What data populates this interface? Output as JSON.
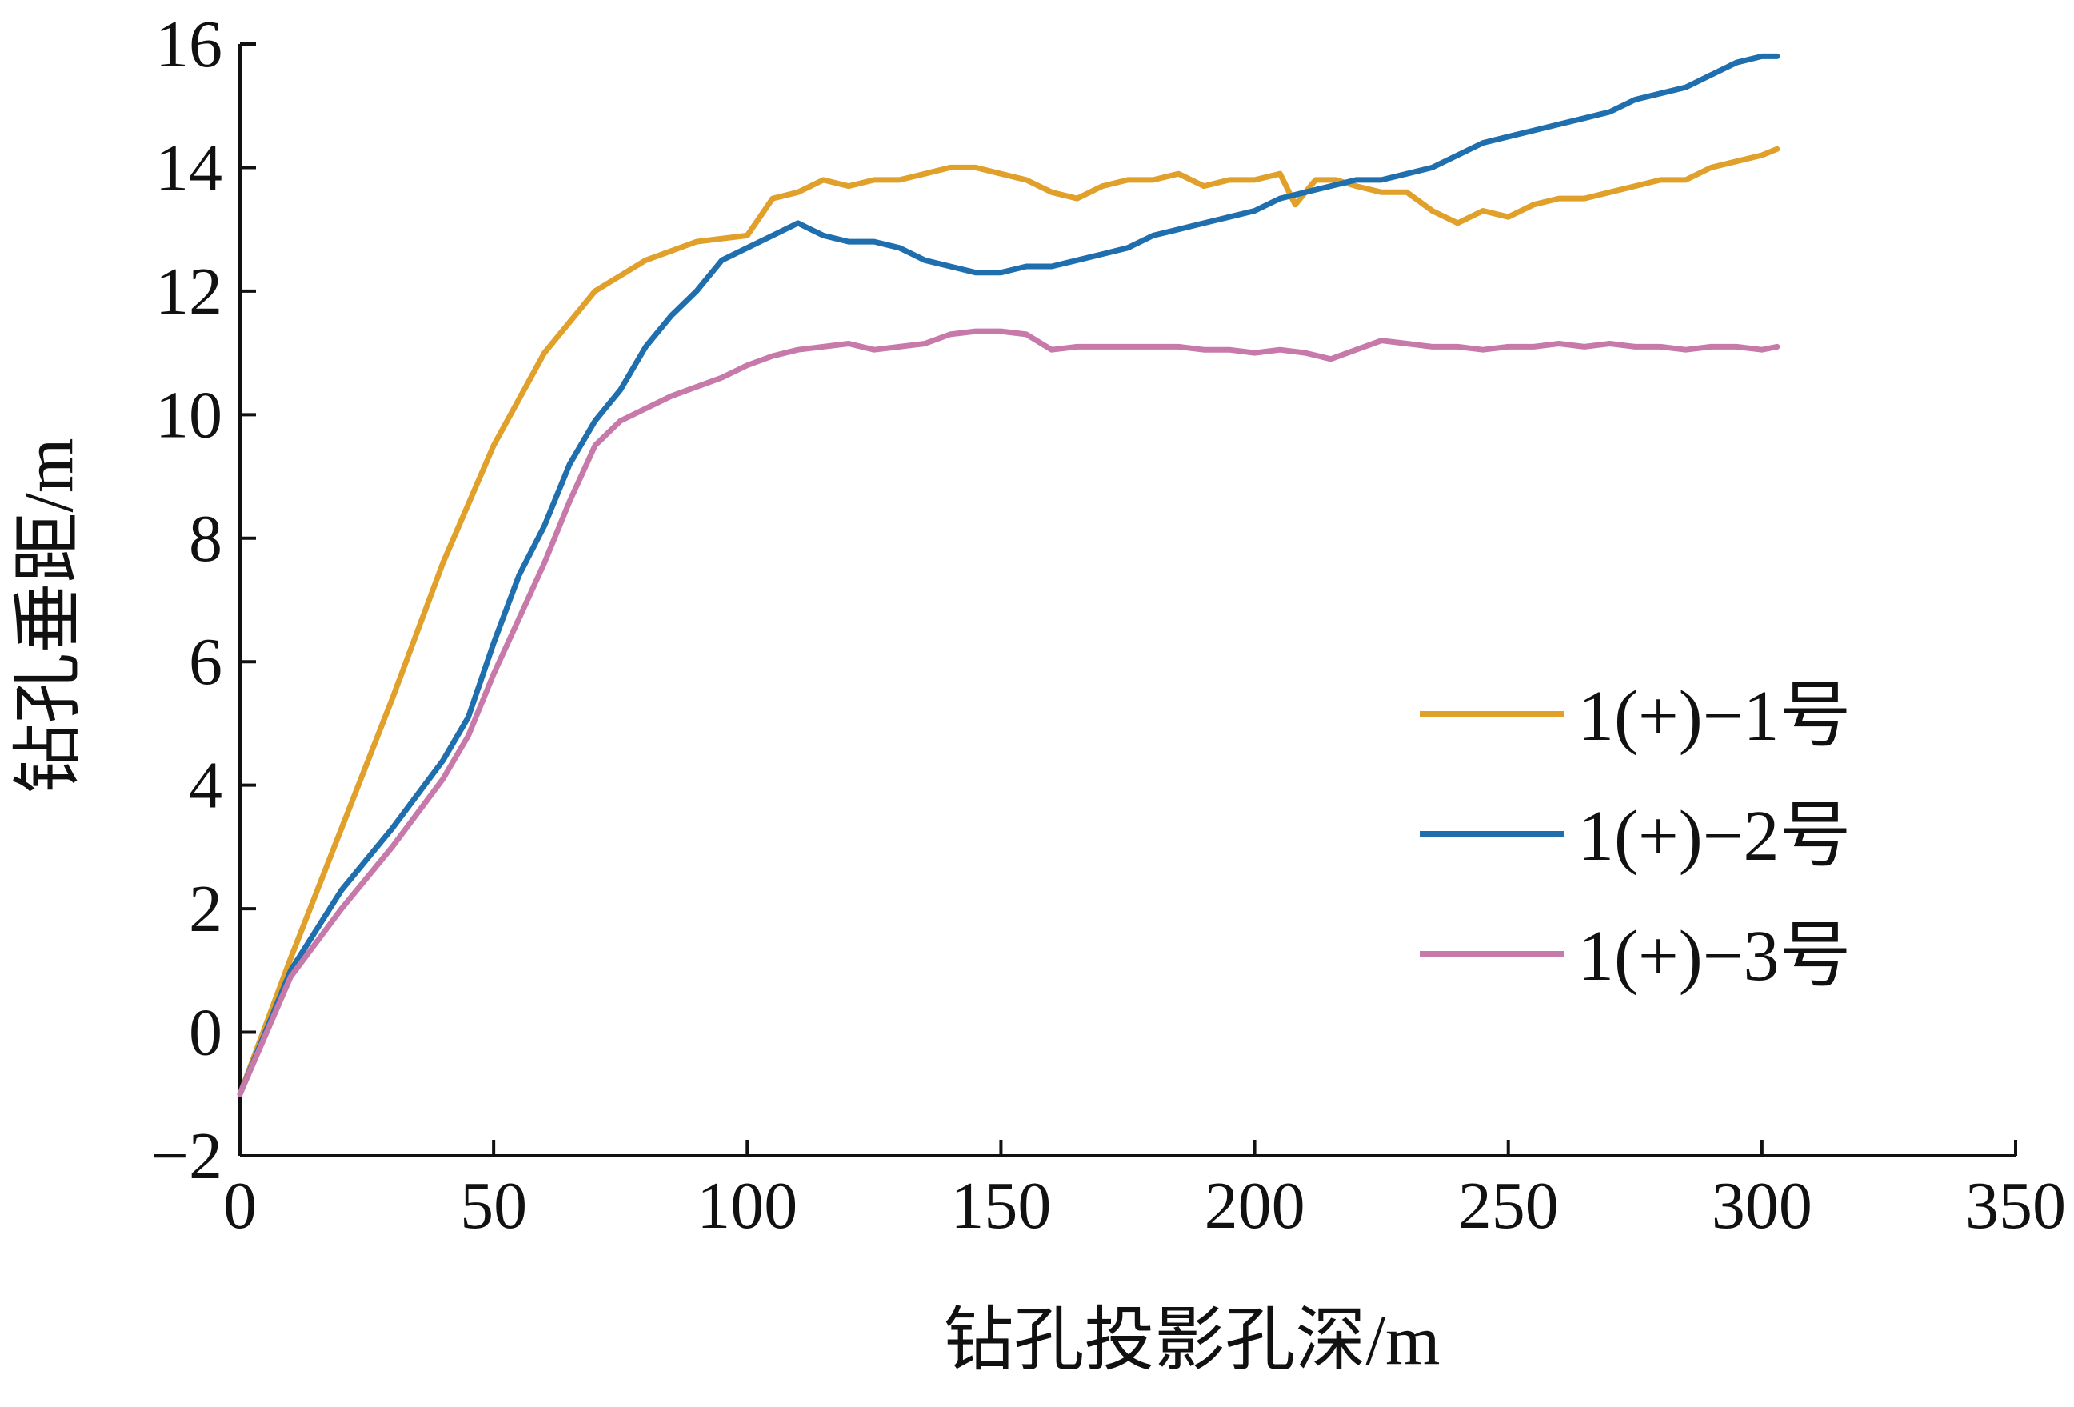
{
  "chart_data": {
    "type": "line",
    "xlabel": "钻孔投影孔深/m",
    "ylabel": "钻孔垂距/m",
    "xlim": [
      0,
      350
    ],
    "ylim": [
      -2,
      16
    ],
    "xticks": [
      0,
      50,
      100,
      150,
      200,
      250,
      300,
      350
    ],
    "yticks": [
      -2,
      0,
      2,
      4,
      6,
      8,
      10,
      12,
      14,
      16
    ],
    "xtick_labels": [
      "0",
      "50",
      "100",
      "150",
      "200",
      "250",
      "300",
      "350"
    ],
    "ytick_labels": [
      "−2",
      "0",
      "2",
      "4",
      "6",
      "8",
      "10",
      "12",
      "14",
      "16"
    ],
    "grid": false,
    "legend_position": "right-middle",
    "series": [
      {
        "name": "1(+)−1号",
        "color": "#E0A02A",
        "points": [
          [
            0,
            -1
          ],
          [
            10,
            1.2
          ],
          [
            20,
            3.3
          ],
          [
            30,
            5.4
          ],
          [
            40,
            7.6
          ],
          [
            50,
            9.5
          ],
          [
            60,
            11.0
          ],
          [
            70,
            12.0
          ],
          [
            80,
            12.5
          ],
          [
            90,
            12.8
          ],
          [
            100,
            12.9
          ],
          [
            105,
            13.5
          ],
          [
            110,
            13.6
          ],
          [
            115,
            13.8
          ],
          [
            120,
            13.7
          ],
          [
            125,
            13.8
          ],
          [
            130,
            13.8
          ],
          [
            135,
            13.9
          ],
          [
            140,
            14.0
          ],
          [
            145,
            14.0
          ],
          [
            150,
            13.9
          ],
          [
            155,
            13.8
          ],
          [
            160,
            13.6
          ],
          [
            165,
            13.5
          ],
          [
            170,
            13.7
          ],
          [
            175,
            13.8
          ],
          [
            180,
            13.8
          ],
          [
            185,
            13.9
          ],
          [
            190,
            13.7
          ],
          [
            195,
            13.8
          ],
          [
            200,
            13.8
          ],
          [
            205,
            13.9
          ],
          [
            208,
            13.4
          ],
          [
            212,
            13.8
          ],
          [
            216,
            13.8
          ],
          [
            220,
            13.7
          ],
          [
            225,
            13.6
          ],
          [
            230,
            13.6
          ],
          [
            235,
            13.3
          ],
          [
            240,
            13.1
          ],
          [
            245,
            13.3
          ],
          [
            250,
            13.2
          ],
          [
            255,
            13.4
          ],
          [
            260,
            13.5
          ],
          [
            265,
            13.5
          ],
          [
            270,
            13.6
          ],
          [
            275,
            13.7
          ],
          [
            280,
            13.8
          ],
          [
            285,
            13.8
          ],
          [
            290,
            14.0
          ],
          [
            295,
            14.1
          ],
          [
            300,
            14.2
          ],
          [
            303,
            14.3
          ]
        ]
      },
      {
        "name": "1(+)−2号",
        "color": "#1F6FAF",
        "points": [
          [
            0,
            -1
          ],
          [
            10,
            1.0
          ],
          [
            20,
            2.3
          ],
          [
            30,
            3.3
          ],
          [
            40,
            4.4
          ],
          [
            45,
            5.1
          ],
          [
            50,
            6.3
          ],
          [
            55,
            7.4
          ],
          [
            60,
            8.2
          ],
          [
            65,
            9.2
          ],
          [
            70,
            9.9
          ],
          [
            75,
            10.4
          ],
          [
            80,
            11.1
          ],
          [
            85,
            11.6
          ],
          [
            90,
            12.0
          ],
          [
            95,
            12.5
          ],
          [
            100,
            12.7
          ],
          [
            105,
            12.9
          ],
          [
            110,
            13.1
          ],
          [
            115,
            12.9
          ],
          [
            120,
            12.8
          ],
          [
            125,
            12.8
          ],
          [
            130,
            12.7
          ],
          [
            135,
            12.5
          ],
          [
            140,
            12.4
          ],
          [
            145,
            12.3
          ],
          [
            150,
            12.3
          ],
          [
            155,
            12.4
          ],
          [
            160,
            12.4
          ],
          [
            165,
            12.5
          ],
          [
            170,
            12.6
          ],
          [
            175,
            12.7
          ],
          [
            180,
            12.9
          ],
          [
            185,
            13.0
          ],
          [
            190,
            13.1
          ],
          [
            195,
            13.2
          ],
          [
            200,
            13.3
          ],
          [
            205,
            13.5
          ],
          [
            210,
            13.6
          ],
          [
            215,
            13.7
          ],
          [
            220,
            13.8
          ],
          [
            225,
            13.8
          ],
          [
            230,
            13.9
          ],
          [
            235,
            14.0
          ],
          [
            240,
            14.2
          ],
          [
            245,
            14.4
          ],
          [
            250,
            14.5
          ],
          [
            255,
            14.6
          ],
          [
            260,
            14.7
          ],
          [
            265,
            14.8
          ],
          [
            270,
            14.9
          ],
          [
            275,
            15.1
          ],
          [
            280,
            15.2
          ],
          [
            285,
            15.3
          ],
          [
            290,
            15.5
          ],
          [
            295,
            15.7
          ],
          [
            300,
            15.8
          ],
          [
            303,
            15.8
          ]
        ]
      },
      {
        "name": "1(+)−3号",
        "color": "#C77AAA",
        "points": [
          [
            0,
            -1
          ],
          [
            10,
            0.9
          ],
          [
            20,
            2.0
          ],
          [
            30,
            3.0
          ],
          [
            40,
            4.1
          ],
          [
            45,
            4.8
          ],
          [
            50,
            5.8
          ],
          [
            55,
            6.7
          ],
          [
            60,
            7.6
          ],
          [
            65,
            8.6
          ],
          [
            70,
            9.5
          ],
          [
            75,
            9.9
          ],
          [
            80,
            10.1
          ],
          [
            85,
            10.3
          ],
          [
            90,
            10.45
          ],
          [
            95,
            10.6
          ],
          [
            100,
            10.8
          ],
          [
            105,
            10.95
          ],
          [
            110,
            11.05
          ],
          [
            115,
            11.1
          ],
          [
            120,
            11.15
          ],
          [
            125,
            11.05
          ],
          [
            130,
            11.1
          ],
          [
            135,
            11.15
          ],
          [
            140,
            11.3
          ],
          [
            145,
            11.35
          ],
          [
            150,
            11.35
          ],
          [
            155,
            11.3
          ],
          [
            160,
            11.05
          ],
          [
            165,
            11.1
          ],
          [
            170,
            11.1
          ],
          [
            175,
            11.1
          ],
          [
            180,
            11.1
          ],
          [
            185,
            11.1
          ],
          [
            190,
            11.05
          ],
          [
            195,
            11.05
          ],
          [
            200,
            11.0
          ],
          [
            205,
            11.05
          ],
          [
            210,
            11.0
          ],
          [
            215,
            10.9
          ],
          [
            220,
            11.05
          ],
          [
            225,
            11.2
          ],
          [
            230,
            11.15
          ],
          [
            235,
            11.1
          ],
          [
            240,
            11.1
          ],
          [
            245,
            11.05
          ],
          [
            250,
            11.1
          ],
          [
            255,
            11.1
          ],
          [
            260,
            11.15
          ],
          [
            265,
            11.1
          ],
          [
            270,
            11.15
          ],
          [
            275,
            11.1
          ],
          [
            280,
            11.1
          ],
          [
            285,
            11.05
          ],
          [
            290,
            11.1
          ],
          [
            295,
            11.1
          ],
          [
            300,
            11.05
          ],
          [
            303,
            11.1
          ]
        ]
      }
    ]
  }
}
